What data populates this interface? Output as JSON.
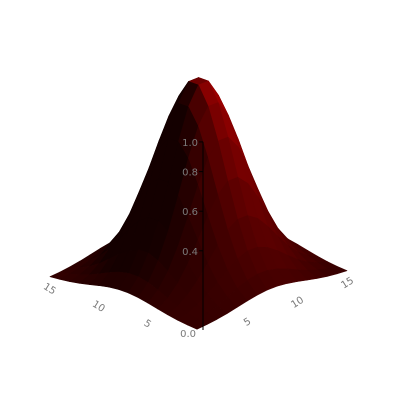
{
  "chart_data": {
    "type": "surface",
    "grid_size": 16,
    "gaussian_center": [
      7.5,
      7.5
    ],
    "gaussian_sigma": 3.2,
    "zlim": [
      0.0,
      1.0
    ],
    "z_ticks": [
      "0.4",
      "0.6",
      "0.8",
      "1.0"
    ],
    "z_origin_label": "0.0",
    "x_ticks": [
      "5",
      "10",
      "15"
    ],
    "y_ticks": [
      "5",
      "10",
      "15"
    ],
    "color": "#c80000",
    "edge_color": "#000000",
    "background": "#ffffff"
  }
}
